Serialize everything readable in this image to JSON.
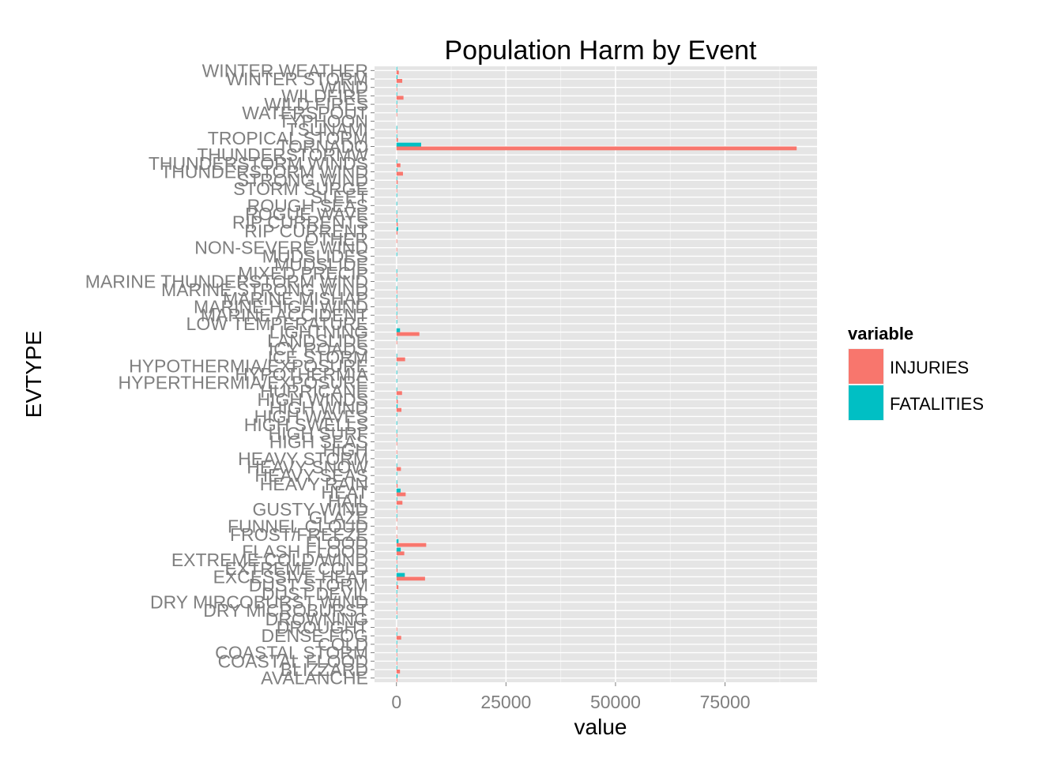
{
  "chart_data": {
    "type": "bar",
    "orientation": "horizontal",
    "title": "Population Harm by Event",
    "xlabel": "value",
    "ylabel": "EVTYPE",
    "xlim": [
      -5000,
      96000
    ],
    "x_ticks": [
      0,
      25000,
      50000,
      75000
    ],
    "x_tick_labels": [
      "0",
      "25000",
      "50000",
      "75000"
    ],
    "grid": true,
    "legend": {
      "title": "variable",
      "position": "right"
    },
    "colors": {
      "INJURIES": "#F8766D",
      "FATALITIES": "#00BFC4",
      "panel": "#E5E5E5",
      "grid": "#FFFFFF",
      "tick_text": "#7F7F7F"
    },
    "categories": [
      "AVALANCHE",
      "BLIZZARD",
      "COASTAL FLOOD",
      "COASTAL STORM",
      "COLD",
      "DENSE FOG",
      "DROUGHT",
      "DROWNING",
      "DRY MICROBURST",
      "DRY MIRCOBURST WIND",
      "DUST DEVIL",
      "DUST STORM",
      "EXCESSIVE HEAT",
      "EXTREME COLD",
      "EXTREME COLD/WIND",
      "FLASH FLOOD",
      "FLOOD",
      "FROST/FREEZE",
      "FUNNEL CLOUD",
      "GLAZE",
      "GUSTY WIND",
      "HAIL",
      "HEAT",
      "HEAVY RAIN",
      "HEAVY SEAS",
      "HEAVY SNOW",
      "HEAVY STORM",
      "HIGH",
      "HIGH SEAS",
      "HIGH SURF",
      "HIGH SWELLS",
      "HIGH WAVES",
      "HIGH WIND",
      "HIGH WINDS",
      "HURRICANE",
      "HYPERTHERMIA/EXPOSURE",
      "HYPOTHERMIA",
      "HYPOTHERMIA/EXPOSURE",
      "ICE STORM",
      "ICY ROADS",
      "LANDSLIDE",
      "LIGHTNING",
      "LOW TEMPERATURE",
      "MARINE ACCIDENT",
      "MARINE HIGH WIND",
      "MARINE MISHAP",
      "MARINE STRONG WIND",
      "MARINE THUNDERSTORM WIND",
      "MIXED PRECIP",
      "MUDSLIDE",
      "MUDSLIDES",
      "NON-SEVERE WIND",
      "OTHER",
      "RIP CURRENT",
      "RIP CURRENTS",
      "ROGUE WAVE",
      "ROUGH SEAS",
      "SLEET",
      "STORM SURGE",
      "STRONG WIND",
      "THUNDERSTORM WIND",
      "THUNDERSTORM WINDS",
      "THUNDERSTORMW",
      "TORNADO",
      "TROPICAL STORM",
      "TSUNAMI",
      "TYPHOON",
      "WATERSPOUT",
      "WILD FIRES",
      "WILDFIRE",
      "WIND",
      "WINTER STORM",
      "WINTER WEATHER"
    ],
    "series": [
      {
        "name": "INJURIES",
        "values": [
          170,
          805,
          2,
          2,
          24,
          1076,
          19,
          0,
          28,
          4,
          43,
          440,
          6525,
          231,
          24,
          1785,
          6789,
          3,
          3,
          6,
          16,
          1361,
          2100,
          251,
          0,
          1021,
          0,
          1,
          5,
          150,
          0,
          0,
          1137,
          302,
          1275,
          0,
          0,
          0,
          1975,
          0,
          52,
          5230,
          0,
          2,
          2,
          1,
          7,
          0,
          2,
          0,
          0,
          7,
          4,
          232,
          297,
          2,
          0,
          0,
          43,
          280,
          1488,
          908,
          0,
          91346,
          340,
          129,
          0,
          29,
          150,
          1606,
          86,
          1321,
          538
        ]
      },
      {
        "name": "FATALITIES",
        "values": [
          224,
          101,
          3,
          3,
          35,
          18,
          0,
          1,
          3,
          2,
          2,
          22,
          1903,
          160,
          95,
          978,
          470,
          0,
          0,
          7,
          4,
          15,
          937,
          98,
          1,
          127,
          1,
          0,
          5,
          101,
          1,
          1,
          246,
          35,
          61,
          1,
          1,
          1,
          89,
          0,
          38,
          816,
          2,
          1,
          1,
          1,
          14,
          3,
          2,
          0,
          1,
          0,
          0,
          368,
          204,
          4,
          8,
          2,
          24,
          103,
          133,
          64,
          0,
          5633,
          58,
          33,
          0,
          3,
          3,
          75,
          23,
          206,
          33
        ]
      }
    ]
  }
}
